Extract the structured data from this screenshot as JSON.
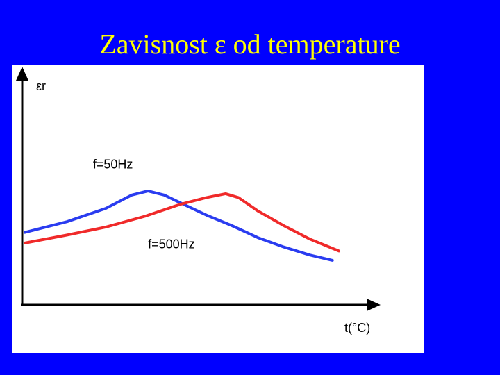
{
  "slide": {
    "title": "Zavisnost ε od temperature"
  },
  "colors": {
    "background": "#0000ff",
    "title": "#ffff00",
    "plot_background": "#ffffff",
    "axes": "#000000"
  },
  "chart_data": {
    "type": "line",
    "title": "",
    "ylabel": "εr",
    "xlabel": "t(°C)",
    "ticks": "none",
    "grid": false,
    "xlim": [
      0,
      100
    ],
    "ylim": [
      0,
      100
    ],
    "series": [
      {
        "name": "f=50Hz",
        "color": "#2a3cf0",
        "x": [
          0,
          13,
          25,
          33,
          38,
          43,
          49,
          56,
          64,
          72,
          80,
          88,
          95
        ],
        "y": [
          32,
          40,
          50,
          60,
          63,
          60,
          53,
          45,
          37,
          28,
          21,
          15,
          11
        ]
      },
      {
        "name": "f=500Hz",
        "color": "#f02a2a",
        "x": [
          0,
          13,
          25,
          37,
          48,
          56,
          62,
          66,
          72,
          80,
          88,
          97
        ],
        "y": [
          24,
          30,
          36,
          44,
          53,
          58,
          61,
          58,
          48,
          37,
          27,
          18
        ]
      }
    ],
    "annotations": [
      {
        "text": "f=50Hz",
        "series": 0
      },
      {
        "text": "f=500Hz",
        "series": 1
      }
    ]
  }
}
